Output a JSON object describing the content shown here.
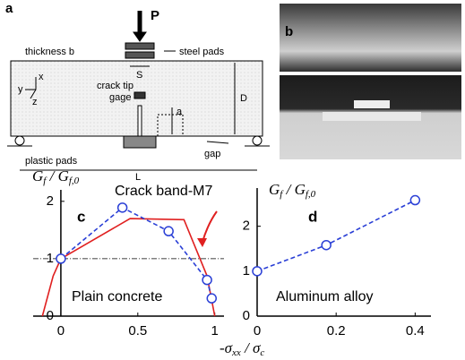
{
  "diagram": {
    "label": "a",
    "load": "P",
    "thickness": "thickness b",
    "pads": "steel pads",
    "span": "S",
    "depth": "D",
    "gage": [
      "crack tip",
      "gage"
    ],
    "notch": "a",
    "plastic": "plastic pads",
    "gap": "gap",
    "length": "L",
    "axes": [
      "x",
      "y",
      "z"
    ]
  },
  "photos": {
    "label": "b"
  },
  "x_label": {
    "main": "-σ",
    "sub1": "xx",
    "sep": " / σ",
    "sub2": "c"
  },
  "chart_data": [
    {
      "type": "line",
      "label": "c",
      "y_label": {
        "main": "G",
        "sub1": "f",
        "sep": " / G",
        "sub2": "f,0"
      },
      "xlim": [
        -0.18,
        1.06
      ],
      "ylim": [
        0,
        2.2
      ],
      "xticks": [
        0,
        0.5,
        1
      ],
      "yticks": [
        0,
        1,
        2
      ],
      "ref_line": 1,
      "annotations": [
        "Crack band-M7",
        "Plain concrete"
      ],
      "series": [
        {
          "color": "#e02020",
          "dash": false,
          "markers": false,
          "x": [
            -0.12,
            -0.05,
            0,
            0.45,
            0.8,
            0.95,
            1.0
          ],
          "values": [
            0,
            0.7,
            1.0,
            1.7,
            1.68,
            0.7,
            0
          ]
        },
        {
          "color": "#2a3fd6",
          "dash": true,
          "markers": true,
          "x": [
            0,
            0.4,
            0.7,
            0.95,
            0.98
          ],
          "values": [
            1.0,
            1.89,
            1.48,
            0.63,
            0.31
          ]
        }
      ]
    },
    {
      "type": "line",
      "label": "d",
      "y_label": {
        "main": "G",
        "sub1": "f",
        "sep": " / G",
        "sub2": "f,0"
      },
      "xlim": [
        0,
        0.44
      ],
      "ylim": [
        0,
        2.85
      ],
      "xticks": [
        0,
        0.2,
        0.4
      ],
      "yticks": [
        0,
        1,
        2
      ],
      "annotations": [
        "Aluminum alloy"
      ],
      "series": [
        {
          "color": "#2a3fd6",
          "dash": true,
          "markers": true,
          "x": [
            0,
            0.175,
            0.4
          ],
          "values": [
            1.0,
            1.58,
            2.58
          ]
        }
      ]
    }
  ]
}
